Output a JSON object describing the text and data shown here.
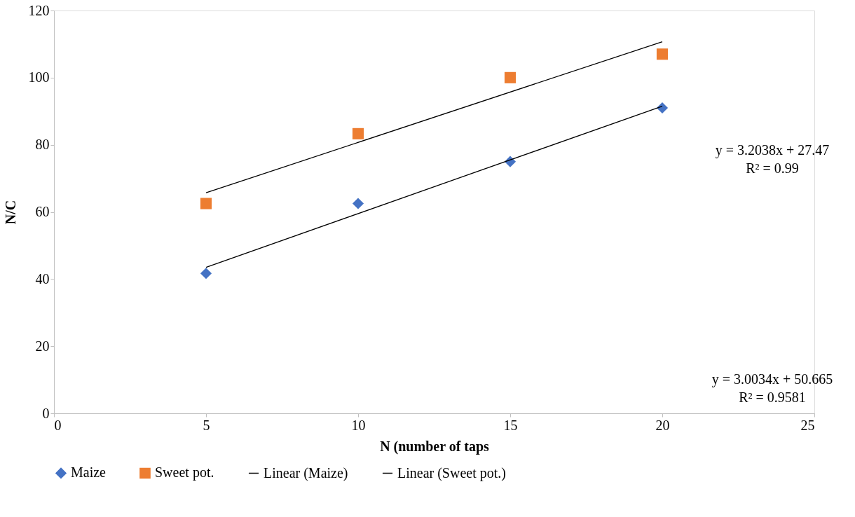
{
  "chart_data": {
    "type": "scatter",
    "xlabel": "N (number of taps",
    "ylabel": "N/C",
    "xlim": [
      0,
      25
    ],
    "xticks": [
      0,
      5,
      10,
      15,
      20,
      25
    ],
    "ylim": [
      0,
      120
    ],
    "yticks": [
      0,
      20,
      40,
      60,
      80,
      100,
      120
    ],
    "grid": false,
    "legend": "bottom",
    "series": [
      {
        "name": "Maize",
        "color": "#4472c4",
        "marker": "diamond",
        "x": [
          5,
          10,
          15,
          20
        ],
        "values": [
          41.7,
          62.5,
          75,
          91
        ]
      },
      {
        "name": "Sweet pot.",
        "color": "#ed7d31",
        "marker": "square",
        "x": [
          5,
          10,
          15,
          20
        ],
        "values": [
          62.5,
          83.3,
          100,
          107
        ]
      },
      {
        "name": "Linear (Maize)",
        "type": "line",
        "color": "#000000",
        "marker": "none",
        "x": [
          5,
          20
        ],
        "values": [
          43.5,
          91.5
        ]
      },
      {
        "name": "Linear (Sweet pot.)",
        "type": "line",
        "color": "#000000",
        "marker": "none",
        "x": [
          5,
          20
        ],
        "values": [
          65.7,
          110.7
        ]
      }
    ],
    "annotations": [
      "y = 3.2038x + 27.47",
      "R² = 0.99",
      "y = 3.0034x + 50.665",
      "R² = 0.9581"
    ]
  }
}
